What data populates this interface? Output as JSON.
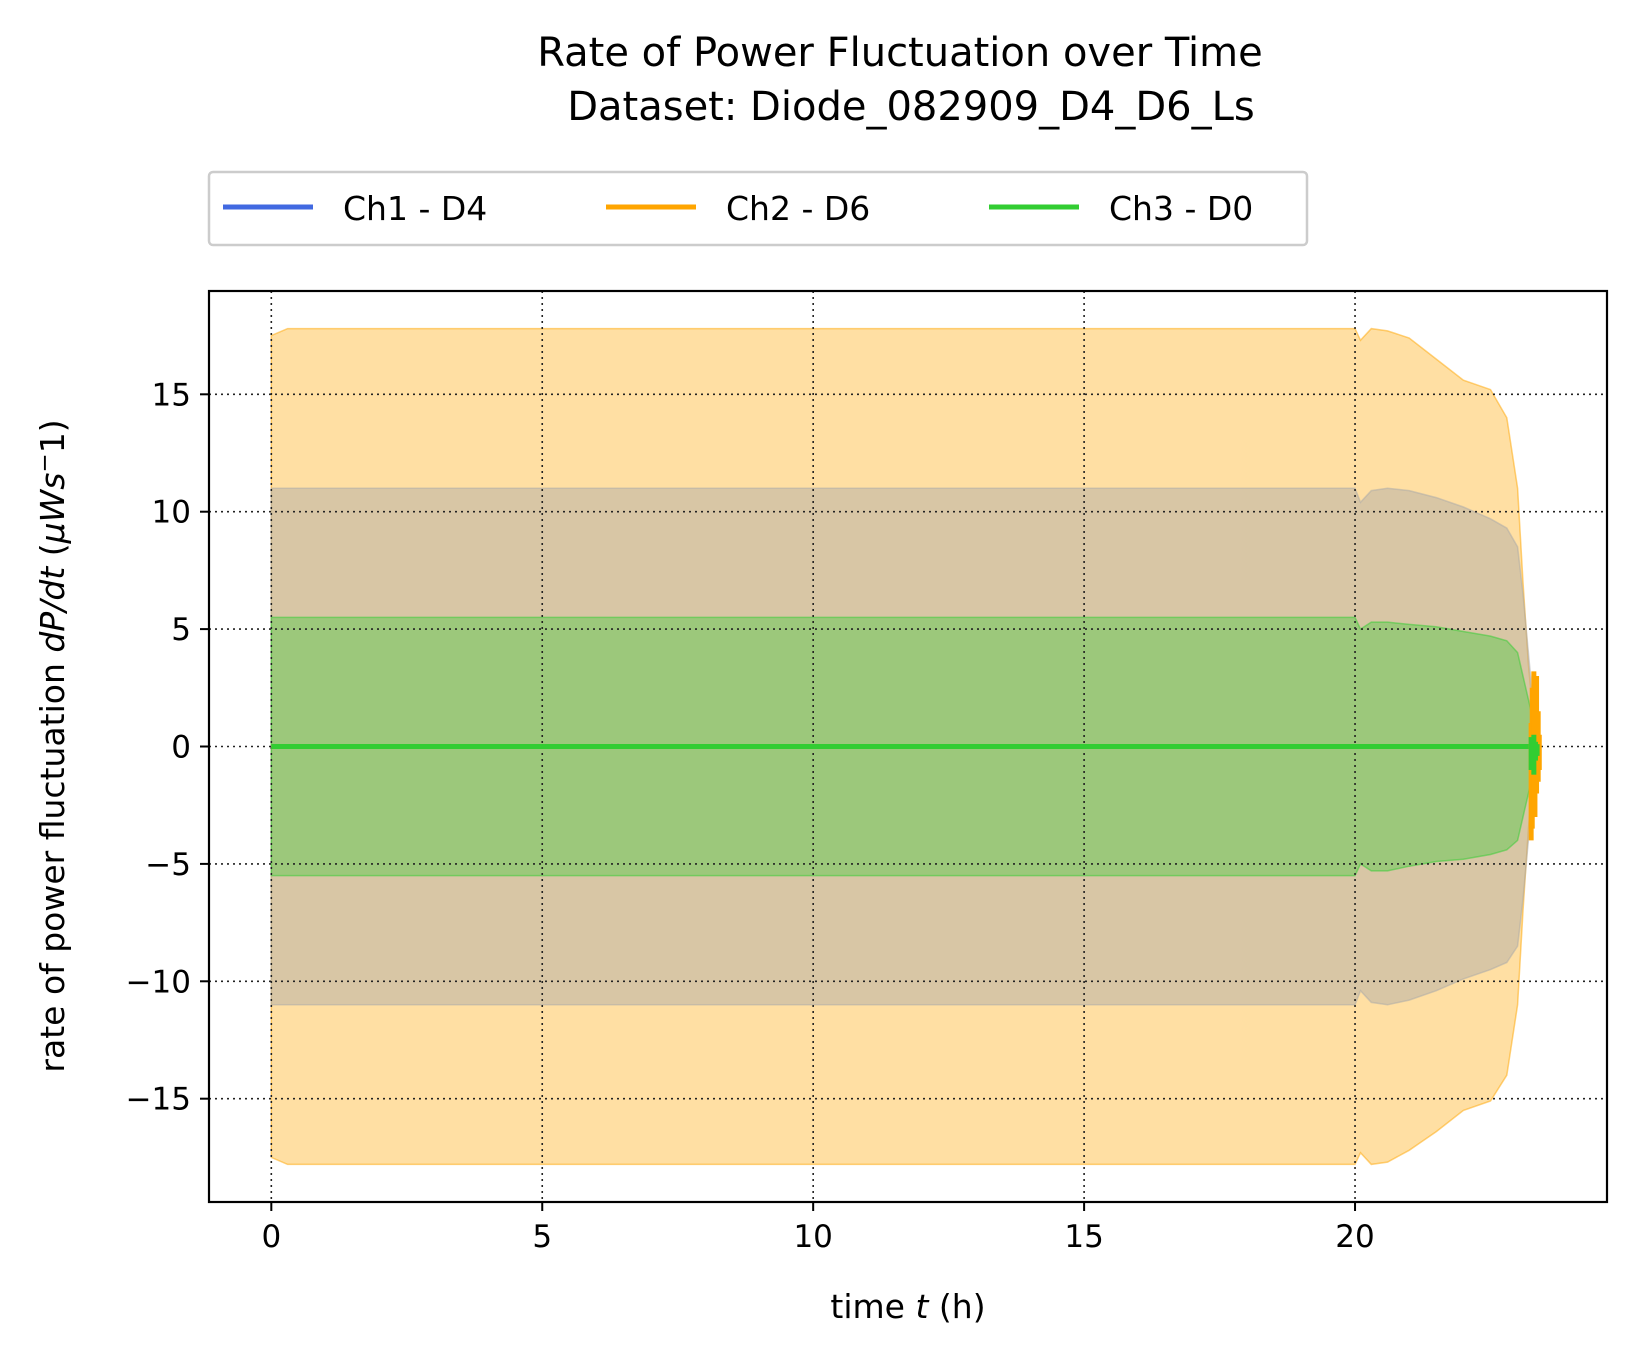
{
  "chart_data": {
    "type": "line",
    "title_line1": "Rate of Power Fluctuation over Time",
    "title_line2": "Dataset: Diode_082909_D4_D6_Ls",
    "xlabel_pre": "time ",
    "xlabel_var": "t",
    "xlabel_post": " (h)",
    "ylabel_pre": "rate of power fluctuation ",
    "ylabel_var": "dP/dt",
    "ylabel_open": " (",
    "ylabel_unit": "μWs",
    "ylabel_exp": "−",
    "ylabel_post": "1)",
    "xlim": [
      -1.15,
      24.65
    ],
    "ylim": [
      -19.4,
      19.4
    ],
    "xticks": [
      0,
      5,
      10,
      15,
      20
    ],
    "xtick_labels": [
      "0",
      "5",
      "10",
      "15",
      "20"
    ],
    "yticks": [
      15,
      10,
      5,
      0,
      -5,
      -10,
      -15
    ],
    "ytick_labels": [
      "15",
      "10",
      "5",
      "0",
      "−5",
      "−10",
      "−15"
    ],
    "grid": true,
    "legend_position": "top-center, above plot, 3 columns",
    "series": [
      {
        "name": "Ch1 - D4",
        "color": "#4169e1",
        "band_color": "#a9a9a9",
        "band_opacity": 0.45,
        "x": [
          0,
          20,
          20.1,
          20.3,
          20.6,
          21,
          21.5,
          22,
          22.5,
          22.8,
          23.0,
          23.1,
          23.2,
          23.3,
          23.35,
          23.4
        ],
        "mean": [
          0,
          0,
          0,
          0,
          0,
          0,
          0,
          0,
          0,
          0,
          0,
          0,
          0,
          0,
          0,
          0
        ],
        "upper": [
          11.0,
          11.0,
          10.4,
          10.9,
          11.0,
          10.9,
          10.6,
          10.2,
          9.7,
          9.3,
          8.5,
          6.5,
          4.0,
          1.5,
          0.5,
          0.3
        ],
        "lower": [
          -11.0,
          -11.0,
          -10.4,
          -10.9,
          -11.0,
          -10.8,
          -10.4,
          -9.9,
          -9.5,
          -9.2,
          -8.5,
          -6.5,
          -4.0,
          -1.5,
          -0.5,
          -0.3
        ]
      },
      {
        "name": "Ch2 - D6",
        "color": "#ffa500",
        "band_color": "#ffa500",
        "band_opacity": 0.36,
        "x": [
          0,
          0.3,
          20,
          20.1,
          20.3,
          20.6,
          21,
          21.5,
          22,
          22.5,
          22.8,
          23.0,
          23.1,
          23.2,
          23.3,
          23.4
        ],
        "mean": [
          0,
          0,
          0,
          0,
          0,
          0,
          0,
          0,
          0,
          0,
          0,
          0,
          0,
          0,
          0,
          0
        ],
        "upper": [
          17.5,
          17.8,
          17.8,
          17.3,
          17.8,
          17.7,
          17.4,
          16.5,
          15.6,
          15.2,
          14.0,
          11.0,
          7.0,
          3.5,
          1.0,
          0.3
        ],
        "lower": [
          -17.5,
          -17.8,
          -17.8,
          -17.3,
          -17.8,
          -17.7,
          -17.2,
          -16.4,
          -15.5,
          -15.1,
          -14.0,
          -11.0,
          -7.0,
          -3.5,
          -1.0,
          -0.3
        ]
      },
      {
        "name": "Ch3 - D0",
        "color": "#32cd32",
        "band_color": "#32cd32",
        "band_opacity": 0.36,
        "x": [
          0,
          20,
          20.1,
          20.3,
          20.6,
          21,
          21.5,
          22,
          22.5,
          22.8,
          23.0,
          23.1,
          23.2,
          23.3,
          23.4
        ],
        "mean": [
          0,
          0,
          0,
          0,
          0,
          0,
          0,
          0,
          0,
          0,
          0,
          0,
          0,
          0,
          0
        ],
        "upper": [
          5.5,
          5.5,
          5.0,
          5.3,
          5.3,
          5.2,
          5.1,
          4.9,
          4.7,
          4.5,
          4.0,
          3.0,
          2.0,
          1.0,
          0.3
        ],
        "lower": [
          -5.5,
          -5.5,
          -5.0,
          -5.3,
          -5.3,
          -5.1,
          -4.9,
          -4.8,
          -4.6,
          -4.4,
          -4.0,
          -3.0,
          -2.0,
          -1.0,
          -0.3
        ]
      }
    ],
    "end_fluctuations": {
      "Ch2 - D6": {
        "x": [
          23.25,
          23.27,
          23.3,
          23.32,
          23.35,
          23.38,
          23.4
        ],
        "y_min": [
          -4.0,
          -3.5,
          -2.5,
          -3.0,
          -2.0,
          -1.5,
          -1.0
        ],
        "y_max": [
          1.0,
          2.5,
          3.2,
          2.0,
          3.0,
          1.5,
          0.5
        ]
      },
      "Ch3 - D0": {
        "x": [
          23.25,
          23.28,
          23.3,
          23.33,
          23.36
        ],
        "y_min": [
          -1.0,
          -0.8,
          -1.2,
          -0.6,
          -0.4
        ],
        "y_max": [
          0.4,
          0.3,
          0.5,
          0.2,
          0.1
        ]
      }
    }
  }
}
